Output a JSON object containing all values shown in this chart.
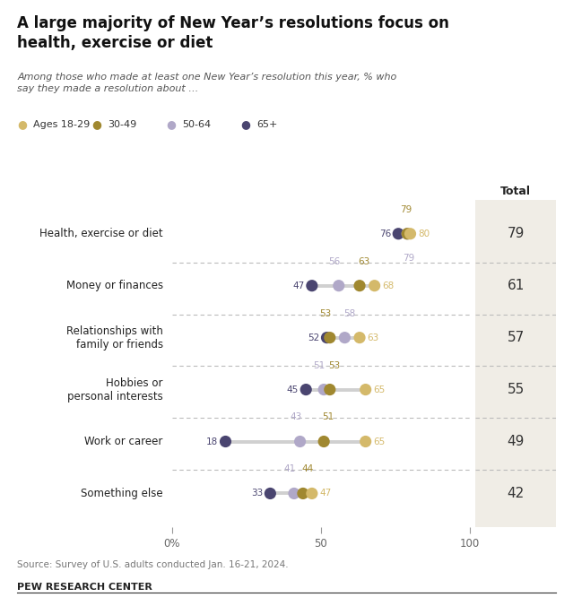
{
  "title": "A large majority of New Year’s resolutions focus on\nhealth, exercise or diet",
  "subtitle": "Among those who made at least one New Year’s resolution this year, % who\nsay they made a resolution about …",
  "source": "Source: Survey of U.S. adults conducted Jan. 16-21, 2024.",
  "footer": "PEW RESEARCH CENTER",
  "categories": [
    "Health, exercise or diet",
    "Money or finances",
    "Relationships with\nfamily or friends",
    "Hobbies or\npersonal interests",
    "Work or career",
    "Something else"
  ],
  "colors": {
    "18-29": "#d4b96a",
    "30-49": "#a08830",
    "50-64": "#b0a8c8",
    "65+": "#4a4570"
  },
  "data": {
    "Health, exercise or diet": {
      "18-29": 80,
      "30-49": 79,
      "50-64": 79,
      "65+": 76
    },
    "Money or finances": {
      "18-29": 68,
      "30-49": 63,
      "50-64": 56,
      "65+": 47
    },
    "Relationships with\nfamily or friends": {
      "18-29": 63,
      "30-49": 53,
      "50-64": 58,
      "65+": 52
    },
    "Hobbies or\npersonal interests": {
      "18-29": 65,
      "30-49": 53,
      "50-64": 51,
      "65+": 45
    },
    "Work or career": {
      "18-29": 65,
      "30-49": 51,
      "50-64": 43,
      "65+": 18
    },
    "Something else": {
      "18-29": 47,
      "30-49": 44,
      "50-64": 41,
      "65+": 33
    }
  },
  "totals": {
    "Health, exercise or diet": 79,
    "Money or finances": 61,
    "Relationships with\nfamily or friends": 57,
    "Hobbies or\npersonal interests": 55,
    "Work or career": 49,
    "Something else": 42
  },
  "total_bg": "#f0ede6",
  "xlim": [
    0,
    110
  ],
  "xticks": [
    0,
    50,
    100
  ],
  "xticklabels": [
    "0%",
    "50",
    "100"
  ]
}
